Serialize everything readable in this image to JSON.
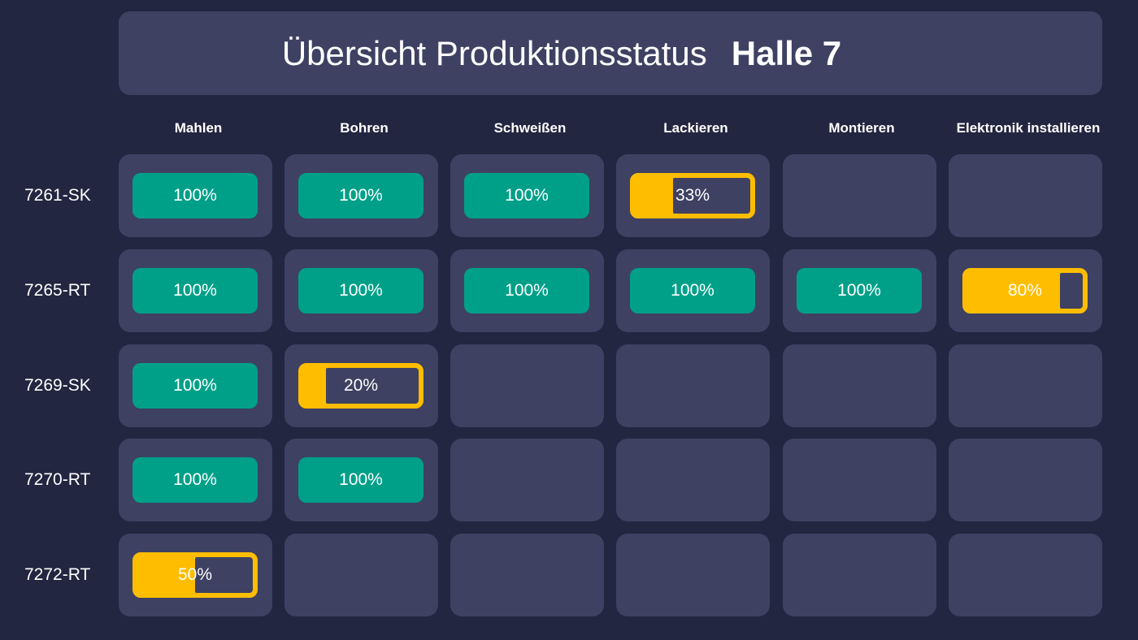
{
  "header": {
    "title": "Übersicht Produktionsstatus",
    "hall": "Halle 7"
  },
  "columns": [
    "Mahlen",
    "Bohren",
    "Schweißen",
    "Lackieren",
    "Montieren",
    "Elektronik installieren"
  ],
  "rows": [
    {
      "label": "7261-SK",
      "cells": [
        100,
        100,
        100,
        33,
        null,
        null
      ],
      "cell_labels": [
        "100%",
        "100%",
        "100%",
        "33%",
        "",
        ""
      ]
    },
    {
      "label": "7265-RT",
      "cells": [
        100,
        100,
        100,
        100,
        100,
        80
      ],
      "cell_labels": [
        "100%",
        "100%",
        "100%",
        "100%",
        "100%",
        "80%"
      ]
    },
    {
      "label": "7269-SK",
      "cells": [
        100,
        20,
        null,
        null,
        null,
        null
      ],
      "cell_labels": [
        "100%",
        "20%",
        "",
        "",
        "",
        ""
      ]
    },
    {
      "label": "7270-RT",
      "cells": [
        100,
        100,
        null,
        null,
        null,
        null
      ],
      "cell_labels": [
        "100%",
        "100%",
        "",
        "",
        "",
        ""
      ]
    },
    {
      "label": "7272-RT",
      "cells": [
        50,
        null,
        null,
        null,
        null,
        null
      ],
      "cell_labels": [
        "50%",
        "",
        "",
        "",
        "",
        ""
      ]
    }
  ],
  "colors": {
    "background": "#222640",
    "panel": "#3e4162",
    "complete": "#00a088",
    "in_progress": "#ffbd00",
    "text": "#ffffff"
  }
}
